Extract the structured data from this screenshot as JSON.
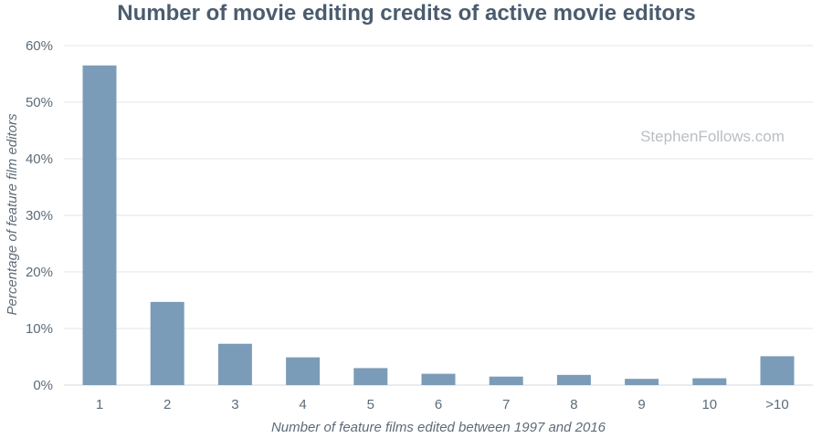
{
  "chart_data": {
    "type": "bar",
    "title": "Number of movie editing credits of active movie editors",
    "xlabel": "Number of feature films edited between 1997 and 2016",
    "ylabel": "Percentage of feature film editors",
    "categories": [
      "1",
      "2",
      "3",
      "4",
      "5",
      "6",
      "7",
      "8",
      "9",
      "10",
      ">10"
    ],
    "values": [
      56.5,
      14.7,
      7.3,
      4.9,
      3.0,
      2.0,
      1.5,
      1.8,
      1.1,
      1.2,
      5.1
    ],
    "ylim": [
      0,
      60
    ],
    "yticks": [
      "0%",
      "10%",
      "20%",
      "30%",
      "40%",
      "50%",
      "60%"
    ],
    "grid": true,
    "legend": "none",
    "bar_color": "#7b9cb8",
    "watermark": "StephenFollows.com"
  }
}
